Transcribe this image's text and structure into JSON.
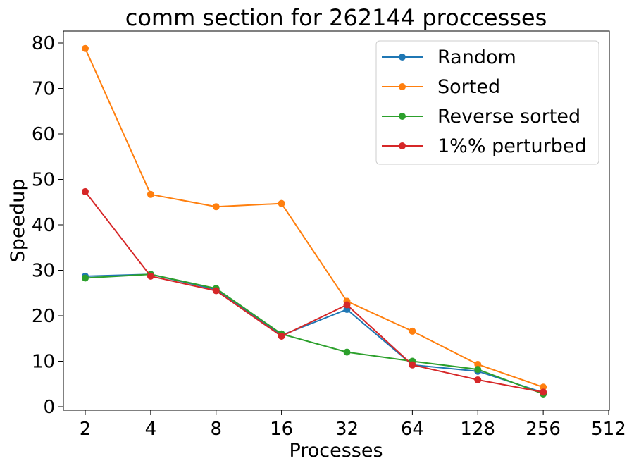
{
  "chart_data": {
    "type": "line",
    "title": "comm section for 262144 proccesses",
    "xlabel": "Processes",
    "ylabel": "Speedup",
    "x": [
      2,
      4,
      8,
      16,
      32,
      64,
      128,
      256
    ],
    "x_scale": "log2",
    "xticks": [
      "2",
      "4",
      "8",
      "16",
      "32",
      "64",
      "128",
      "256",
      "512"
    ],
    "xlim": [
      2,
      512
    ],
    "yticks": [
      "0",
      "10",
      "20",
      "30",
      "40",
      "50",
      "60",
      "70",
      "80"
    ],
    "ylim": [
      0,
      80
    ],
    "grid": false,
    "legend_position": "top-right",
    "series": [
      {
        "name": "Random",
        "color": "#1f77b4",
        "values": [
          28.7,
          29.1,
          25.8,
          15.7,
          21.4,
          9.2,
          7.8,
          3.1
        ]
      },
      {
        "name": "Sorted",
        "color": "#ff7f0e",
        "values": [
          78.8,
          46.7,
          44.0,
          44.7,
          23.2,
          16.6,
          9.3,
          4.3
        ]
      },
      {
        "name": "Reverse sorted",
        "color": "#2ca02c",
        "values": [
          28.3,
          29.1,
          26.0,
          16.0,
          12.0,
          10.0,
          8.2,
          2.8
        ]
      },
      {
        "name": "1%% perturbed",
        "color": "#d62728",
        "values": [
          47.3,
          28.7,
          25.5,
          15.5,
          22.4,
          9.2,
          5.9,
          3.2
        ]
      }
    ]
  }
}
